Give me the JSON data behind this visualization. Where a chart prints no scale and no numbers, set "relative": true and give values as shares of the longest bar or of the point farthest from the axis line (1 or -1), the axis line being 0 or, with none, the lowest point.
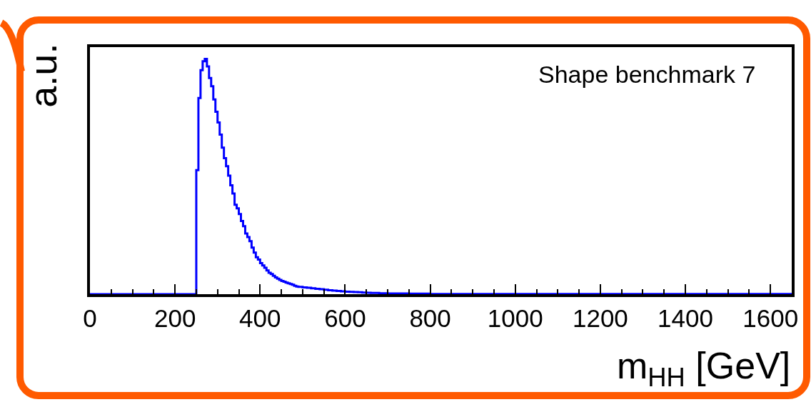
{
  "chart_data": {
    "type": "step",
    "relative": true,
    "xlabel": "m$_{HH}$ [GeV]",
    "ylabel": "a.u.",
    "annotations": [
      "Shape benchmark 7"
    ],
    "color": "#0000ff",
    "x": [
      0,
      250,
      255,
      260,
      265,
      270,
      275,
      280,
      285,
      290,
      295,
      300,
      305,
      310,
      315,
      320,
      325,
      330,
      335,
      340,
      345,
      350,
      355,
      360,
      365,
      370,
      375,
      380,
      385,
      390,
      395,
      400,
      405,
      410,
      415,
      420,
      425,
      430,
      435,
      440,
      445,
      450,
      455,
      460,
      465,
      470,
      475,
      480,
      485,
      490,
      500,
      510,
      520,
      530,
      540,
      550,
      560,
      570,
      580,
      590,
      600,
      610,
      620,
      630,
      640,
      650,
      660,
      670,
      680,
      690,
      700,
      750,
      800,
      1650
    ],
    "values": [
      0,
      0.527,
      0.834,
      0.952,
      0.99,
      1.0,
      0.968,
      0.919,
      0.884,
      0.828,
      0.775,
      0.73,
      0.678,
      0.623,
      0.578,
      0.544,
      0.504,
      0.463,
      0.428,
      0.38,
      0.365,
      0.341,
      0.311,
      0.289,
      0.258,
      0.243,
      0.225,
      0.198,
      0.177,
      0.157,
      0.147,
      0.132,
      0.122,
      0.112,
      0.101,
      0.091,
      0.086,
      0.078,
      0.071,
      0.066,
      0.061,
      0.056,
      0.053,
      0.049,
      0.046,
      0.043,
      0.04,
      0.036,
      0.033,
      0.031,
      0.029,
      0.027,
      0.025,
      0.023,
      0.021,
      0.019,
      0.017,
      0.015,
      0.014,
      0.012,
      0.011,
      0.01,
      0.009,
      0.008,
      0.007,
      0.006,
      0.005,
      0.005,
      0.004,
      0.004,
      0.003,
      0.002,
      0.001,
      0.001
    ],
    "xlim": [
      0,
      1650
    ],
    "xticks": [
      0,
      200,
      400,
      600,
      800,
      1000,
      1200,
      1400,
      1600
    ],
    "grid": false
  }
}
